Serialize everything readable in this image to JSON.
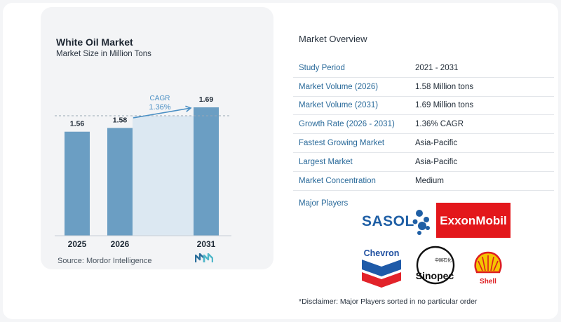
{
  "chart_data": {
    "type": "bar",
    "title": "White Oil Market",
    "subtitle": "Market Size in Million Tons",
    "categories": [
      "2025",
      "2026",
      "2031"
    ],
    "values": [
      1.56,
      1.58,
      1.69
    ],
    "value_labels": [
      "1.56",
      "1.58",
      "1.69"
    ],
    "cagr_label": "CAGR",
    "cagr_value": "1.36%",
    "grid": false,
    "bar_color": "#6b9ec3",
    "highlight_color": "#dce8f2"
  },
  "source": "Source:  Mordor Intelligence",
  "overview": {
    "title": "Market Overview",
    "rows": [
      {
        "key": "Study Period",
        "value": "2021 - 2031"
      },
      {
        "key": "Market Volume (2026)",
        "value": "1.58 Million tons"
      },
      {
        "key": "Market Volume (2031)",
        "value": "1.69 Million tons"
      },
      {
        "key": "Growth Rate (2026 - 2031)",
        "value": "1.36% CAGR"
      },
      {
        "key": "Fastest Growing Market",
        "value": "Asia-Pacific"
      },
      {
        "key": "Largest Market",
        "value": "Asia-Pacific"
      },
      {
        "key": "Market Concentration",
        "value": "Medium"
      }
    ]
  },
  "major_players": {
    "label": "Major Players",
    "logos": [
      "SASOL",
      "ExxonMobil",
      "Chevron",
      "Sinopec",
      "Shell"
    ]
  },
  "disclaimer": "*Disclaimer: Major Players sorted in no particular order"
}
